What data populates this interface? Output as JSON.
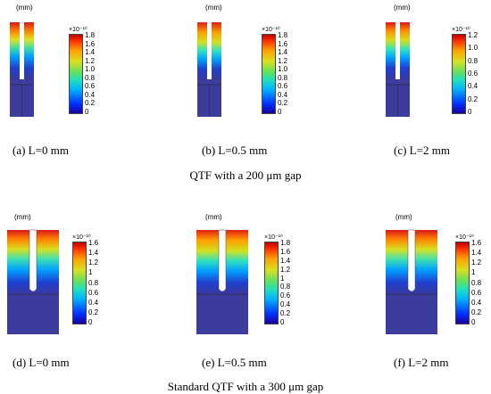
{
  "panels": [
    {
      "unit": "(mm)",
      "scale": "×10⁻¹⁰",
      "ticks": [
        "1.8",
        "1.6",
        "1.4",
        "1.2",
        "1.0",
        "0.8",
        "0.6",
        "0.4",
        "0.2",
        "0"
      ],
      "caption": "(a) L=0 mm"
    },
    {
      "unit": "(mm)",
      "scale": "×10⁻¹⁰",
      "ticks": [
        "1.8",
        "1.6",
        "1.4",
        "1.2",
        "1.0",
        "0.8",
        "0.6",
        "0.4",
        "0.2",
        "0"
      ],
      "caption": "(b) L=0.5 mm"
    },
    {
      "unit": "(mm)",
      "scale": "×10⁻¹⁰",
      "ticks": [
        "1.2",
        "1.0",
        "0.8",
        "0.6",
        "0.4",
        "0.2",
        "0"
      ],
      "caption": "(c) L=2 mm"
    },
    {
      "unit": "(mm)",
      "scale": "×10⁻¹⁰",
      "ticks": [
        "1.6",
        "1.4",
        "1.2",
        "1",
        "0.8",
        "0.6",
        "0.4",
        "0.2",
        "0"
      ],
      "caption": "(d) L=0 mm"
    },
    {
      "unit": "(mm)",
      "scale": "×10⁻¹⁰",
      "ticks": [
        "1.8",
        "1.6",
        "1.4",
        "1.2",
        "1",
        "0.8",
        "0.6",
        "0.4",
        "0.2",
        "0"
      ],
      "caption": "(e) L=0.5 mm"
    },
    {
      "unit": "(mm)",
      "scale": "×10⁻¹⁰",
      "ticks": [
        "1.6",
        "1.4",
        "1.2",
        "1",
        "0.8",
        "0.6",
        "0.4",
        "0.2",
        "0"
      ],
      "caption": "(f) L=2 mm"
    }
  ],
  "row_captions": [
    "QTF with a 200 μm gap",
    "Standard QTF with a 300 μm gap"
  ],
  "colors": {
    "tine_top": "#d02020",
    "tine_bottom": "#3030a0",
    "base": "#3c3c9c"
  }
}
